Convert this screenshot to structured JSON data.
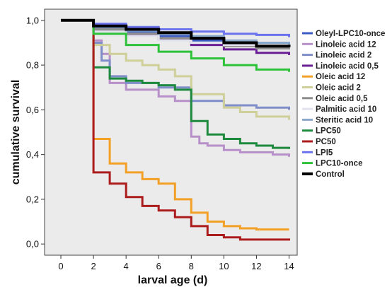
{
  "chart_data": {
    "type": "line",
    "title": "",
    "xlabel": "larval age (d)",
    "ylabel": "cumulative survival",
    "xlim": [
      -1,
      14.5
    ],
    "ylim": [
      -0.05,
      1.05
    ],
    "x_ticks": [
      "0",
      "2",
      "4",
      "6",
      "8",
      "10",
      "12",
      "14"
    ],
    "y_ticks": [
      "0,0",
      "0,2",
      "0,4",
      "0,6",
      "0,8",
      "1,0"
    ],
    "grid": false,
    "legend_position": "right",
    "plot_background": "#ebebeb",
    "series": [
      {
        "name": "Oleyl-LPC10-once",
        "color": "#3c5cc4",
        "width": 3,
        "points": [
          [
            0,
            1
          ],
          [
            2,
            1
          ],
          [
            2,
            0.965
          ],
          [
            4,
            0.95
          ],
          [
            6,
            0.93
          ],
          [
            8,
            0.91
          ],
          [
            10,
            0.895
          ],
          [
            12,
            0.885
          ],
          [
            14,
            0.875
          ]
        ]
      },
      {
        "name": "Linoleic acid 12",
        "color": "#b78fc9",
        "width": 3,
        "points": [
          [
            0,
            1
          ],
          [
            2,
            1
          ],
          [
            2,
            0.91
          ],
          [
            2.5,
            0.85
          ],
          [
            3,
            0.72
          ],
          [
            4,
            0.69
          ],
          [
            6,
            0.66
          ],
          [
            7,
            0.64
          ],
          [
            8,
            0.48
          ],
          [
            8.5,
            0.45
          ],
          [
            9,
            0.44
          ],
          [
            10,
            0.42
          ],
          [
            11,
            0.41
          ],
          [
            13,
            0.4
          ],
          [
            14,
            0.39
          ]
        ]
      },
      {
        "name": "Linoleic acid 2",
        "color": "#7f8ec8",
        "width": 3,
        "points": [
          [
            0,
            1
          ],
          [
            2,
            1
          ],
          [
            2,
            0.9
          ],
          [
            2.5,
            0.82
          ],
          [
            3,
            0.75
          ],
          [
            4,
            0.72
          ],
          [
            6,
            0.7
          ],
          [
            8,
            0.64
          ],
          [
            10,
            0.62
          ],
          [
            12,
            0.61
          ],
          [
            14,
            0.6
          ]
        ]
      },
      {
        "name": "Linoleic acid 0,5",
        "color": "#6a1f95",
        "width": 3,
        "points": [
          [
            0,
            1
          ],
          [
            2,
            1
          ],
          [
            2,
            0.955
          ],
          [
            4,
            0.935
          ],
          [
            6,
            0.915
          ],
          [
            8,
            0.89
          ],
          [
            10,
            0.87
          ],
          [
            12,
            0.855
          ],
          [
            14,
            0.845
          ]
        ]
      },
      {
        "name": "Oleic acid 12",
        "color": "#f3a026",
        "width": 3,
        "points": [
          [
            0,
            1
          ],
          [
            2,
            1
          ],
          [
            2,
            0.47
          ],
          [
            3,
            0.36
          ],
          [
            4,
            0.32
          ],
          [
            5,
            0.29
          ],
          [
            6,
            0.27
          ],
          [
            7,
            0.2
          ],
          [
            8,
            0.14
          ],
          [
            9,
            0.1
          ],
          [
            10,
            0.08
          ],
          [
            11,
            0.07
          ],
          [
            12,
            0.065
          ],
          [
            14,
            0.065
          ]
        ]
      },
      {
        "name": "Oleic acid 2",
        "color": "#cfcf9a",
        "width": 3,
        "points": [
          [
            0,
            1
          ],
          [
            2,
            1
          ],
          [
            2,
            0.89
          ],
          [
            3,
            0.85
          ],
          [
            4,
            0.82
          ],
          [
            5,
            0.8
          ],
          [
            6,
            0.78
          ],
          [
            7,
            0.75
          ],
          [
            8,
            0.67
          ],
          [
            10,
            0.61
          ],
          [
            11,
            0.59
          ],
          [
            12,
            0.57
          ],
          [
            14,
            0.555
          ]
        ]
      },
      {
        "name": "Oleic acid 0,5",
        "color": "#8d8d8d",
        "width": 3,
        "points": [
          [
            0,
            1
          ],
          [
            2,
            1
          ],
          [
            2,
            0.96
          ],
          [
            4,
            0.94
          ],
          [
            6,
            0.92
          ],
          [
            8,
            0.9
          ],
          [
            10,
            0.885
          ],
          [
            12,
            0.875
          ],
          [
            14,
            0.87
          ]
        ]
      },
      {
        "name": "Palmitic acid 10",
        "color": "#e2e2ee",
        "width": 3,
        "points": [
          [
            0,
            1
          ],
          [
            2,
            1
          ],
          [
            2,
            0.95
          ],
          [
            4,
            0.93
          ],
          [
            6,
            0.91
          ],
          [
            8,
            0.9
          ],
          [
            10,
            0.89
          ],
          [
            14,
            0.88
          ]
        ]
      },
      {
        "name": "Steritic acid 10",
        "color": "#89a9cc",
        "width": 3,
        "points": [
          [
            0,
            1
          ],
          [
            2,
            1
          ],
          [
            2,
            0.97
          ],
          [
            4,
            0.955
          ],
          [
            6,
            0.94
          ],
          [
            8,
            0.93
          ],
          [
            10,
            0.91
          ],
          [
            12,
            0.9
          ],
          [
            14,
            0.89
          ]
        ]
      },
      {
        "name": "LPC50",
        "color": "#1e8a3e",
        "width": 3,
        "points": [
          [
            0,
            1
          ],
          [
            2,
            1
          ],
          [
            2,
            0.79
          ],
          [
            3,
            0.74
          ],
          [
            4,
            0.73
          ],
          [
            5,
            0.72
          ],
          [
            6,
            0.71
          ],
          [
            7,
            0.69
          ],
          [
            8,
            0.55
          ],
          [
            9,
            0.49
          ],
          [
            10,
            0.47
          ],
          [
            11,
            0.45
          ],
          [
            12,
            0.44
          ],
          [
            13,
            0.43
          ],
          [
            14,
            0.425
          ]
        ]
      },
      {
        "name": "PC50",
        "color": "#ad1c1c",
        "width": 3,
        "points": [
          [
            0,
            1
          ],
          [
            2,
            1
          ],
          [
            2,
            0.32
          ],
          [
            3,
            0.27
          ],
          [
            4,
            0.21
          ],
          [
            5,
            0.17
          ],
          [
            6,
            0.15
          ],
          [
            7,
            0.12
          ],
          [
            8,
            0.08
          ],
          [
            9,
            0.04
          ],
          [
            10,
            0.03
          ],
          [
            11,
            0.02
          ],
          [
            14,
            0.015
          ]
        ]
      },
      {
        "name": "LPI5",
        "color": "#6b72ee",
        "width": 3,
        "points": [
          [
            0,
            1
          ],
          [
            2,
            1
          ],
          [
            2,
            0.985
          ],
          [
            4,
            0.97
          ],
          [
            6,
            0.96
          ],
          [
            8,
            0.95
          ],
          [
            10,
            0.94
          ],
          [
            12,
            0.935
          ],
          [
            14,
            0.925
          ]
        ]
      },
      {
        "name": "LPC10-once",
        "color": "#2ec23a",
        "width": 3,
        "points": [
          [
            0,
            1
          ],
          [
            2,
            1
          ],
          [
            2,
            0.94
          ],
          [
            4,
            0.89
          ],
          [
            6,
            0.86
          ],
          [
            8,
            0.83
          ],
          [
            10,
            0.8
          ],
          [
            12,
            0.78
          ],
          [
            14,
            0.77
          ]
        ]
      },
      {
        "name": "Control",
        "color": "#000000",
        "width": 4,
        "points": [
          [
            0,
            1
          ],
          [
            2,
            1
          ],
          [
            2,
            0.975
          ],
          [
            4,
            0.96
          ],
          [
            6,
            0.945
          ],
          [
            8,
            0.92
          ],
          [
            10,
            0.9
          ],
          [
            12,
            0.885
          ],
          [
            14,
            0.88
          ]
        ]
      }
    ]
  }
}
